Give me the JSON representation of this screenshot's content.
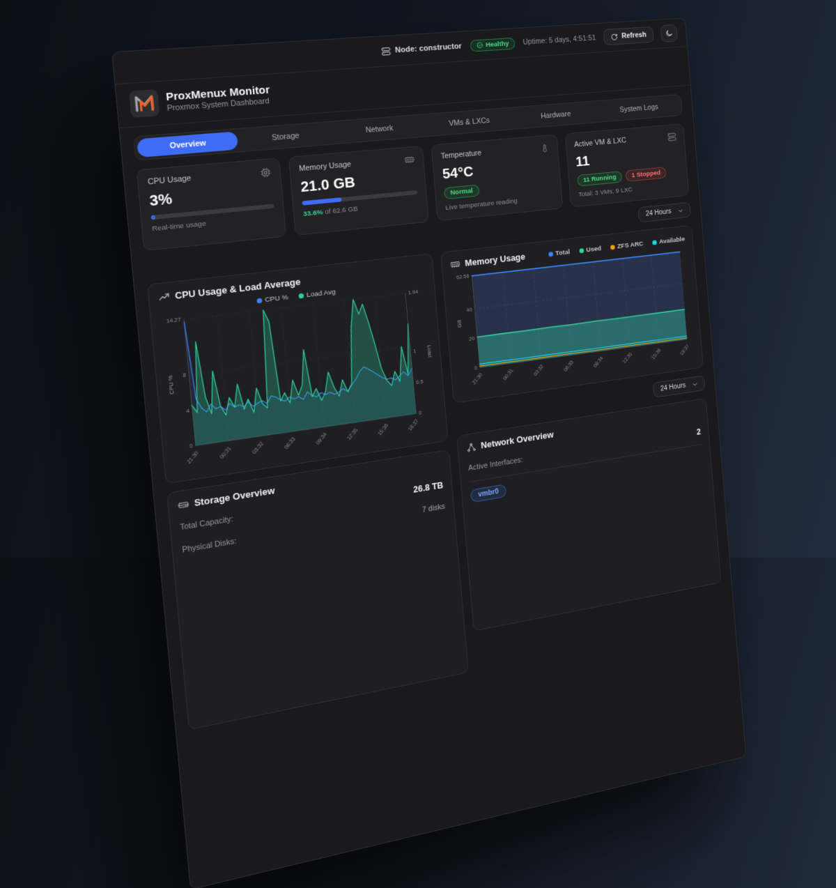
{
  "topbar": {
    "node_label": "Node: constructor",
    "health_label": "Healthy",
    "uptime": "Uptime: 5 days, 4:51:51",
    "refresh_label": "Refresh"
  },
  "header": {
    "title": "ProxMenux Monitor",
    "subtitle": "Proxmox System Dashboard"
  },
  "tabs": [
    {
      "label": "Overview",
      "active": true
    },
    {
      "label": "Storage",
      "active": false
    },
    {
      "label": "Network",
      "active": false
    },
    {
      "label": "VMs & LXCs",
      "active": false
    },
    {
      "label": "Hardware",
      "active": false
    },
    {
      "label": "System Logs",
      "active": false
    }
  ],
  "cards": {
    "cpu": {
      "title": "CPU Usage",
      "value": "3%",
      "progress_pct": 3,
      "caption": "Real-time usage"
    },
    "memory": {
      "title": "Memory Usage",
      "value": "21.0 GB",
      "progress_pct": 33.6,
      "caption_pct": "33.6%",
      "caption_rest": " of 62.6 GB"
    },
    "temperature": {
      "title": "Temperature",
      "value": "54°C",
      "badge": "Normal",
      "caption": "Live temperature reading"
    },
    "vms": {
      "title": "Active VM & LXC",
      "value": "11",
      "badge_running": "11 Running",
      "badge_stopped": "1 Stopped",
      "caption": "Total: 3 VMs, 9 LXC"
    }
  },
  "timerange": {
    "label": "24 Hours"
  },
  "storage": {
    "title": "Storage Overview",
    "rows": [
      {
        "label": "Total Capacity:",
        "value": "26.8 TB"
      },
      {
        "label": "Physical Disks:",
        "value": "7 disks"
      }
    ]
  },
  "network": {
    "title": "Network Overview",
    "rows": [
      {
        "label": "Active Interfaces:",
        "value": "2"
      }
    ],
    "interface_badge": "vmbr0"
  },
  "colors": {
    "accent_blue": "#3e6cf4",
    "healthy_green": "#4ade80",
    "stopped_red": "#f87171",
    "logo_orange": "#e8622c"
  },
  "icons": {
    "topbar_node": "server-icon",
    "health": "check-circle-icon",
    "refresh": "refresh-icon",
    "theme": "moon-icon",
    "cpu_card": "cpu-chip-icon",
    "memory_card": "ram-icon",
    "temperature_card": "thermometer-icon",
    "vms_card": "server-stack-icon",
    "cpu_chart": "trending-up-icon",
    "memory_chart": "ram-icon",
    "storage": "hard-drive-icon",
    "network": "network-nodes-icon",
    "timerange": "chevron-down-icon"
  },
  "chart_data": [
    {
      "type": "line",
      "title": "CPU Usage & Load Average",
      "x_labels": [
        "21:30",
        "00:31",
        "03:32",
        "06:33",
        "09:34",
        "12:35",
        "15:36",
        "18:37"
      ],
      "y_left": {
        "label": "CPU %",
        "max": 14.27,
        "ticks": [
          14.27,
          8,
          4,
          0
        ]
      },
      "y_right": {
        "label": "Load",
        "max": 1.94,
        "ticks": [
          1.94,
          1,
          0.5,
          0
        ]
      },
      "grid": true,
      "grid_color": "#303238",
      "legend": [
        {
          "label": "CPU %",
          "color": "#3b82f6"
        },
        {
          "label": "Load Avg",
          "color": "#2ece9d"
        }
      ],
      "series": [
        {
          "name": "CPU %",
          "axis": "left",
          "color": "#3b82f6",
          "width": 1.2,
          "fill": "rgba(59,130,246,0.10)",
          "values": [
            14,
            5.2,
            4.1,
            3.6,
            4.4,
            3.8,
            4,
            3.5,
            4.2,
            3.7,
            3.9,
            3.6,
            4.1,
            3.5,
            3.8,
            4,
            3.6,
            4.4,
            4.2,
            3.8,
            3.6,
            4,
            3.7,
            3.9,
            3.5,
            4.3,
            3.8,
            3.6,
            4,
            3.7,
            3.9,
            3.6,
            3.8,
            4.1,
            3.7,
            4.4,
            5,
            5.8,
            6.3,
            6,
            5.6,
            5.2,
            4.8,
            4.5,
            4.6,
            4.3,
            4.7,
            5.1,
            4.6,
            5.4
          ]
        },
        {
          "name": "Load Avg",
          "axis": "right",
          "color": "#2ece9d",
          "width": 1.2,
          "fill": "rgba(46,206,157,0.28)",
          "values": [
            0.62,
            0.5,
            1.58,
            0.72,
            0.45,
            1.1,
            0.55,
            0.4,
            0.66,
            0.5,
            0.85,
            0.45,
            0.6,
            0.38,
            0.75,
            0.5,
            0.42,
            1.94,
            1.75,
            0.5,
            0.62,
            0.45,
            0.8,
            0.55,
            0.7,
            1.25,
            0.5,
            0.62,
            0.42,
            0.55,
            0.85,
            0.6,
            0.45,
            0.7,
            0.5,
            0.62,
            1.5,
            1.94,
            1.7,
            1.85,
            1.55,
            1.2,
            0.8,
            0.6,
            0.5,
            0.72,
            0.55,
            1.1,
            0.65,
            1.45
          ]
        }
      ]
    },
    {
      "type": "area",
      "title": "Memory Usage",
      "x_labels": [
        "21:30",
        "00:31",
        "03:32",
        "06:33",
        "09:34",
        "12:35",
        "15:36",
        "18:37"
      ],
      "y_left": {
        "label": "GB",
        "max": 62.56,
        "ticks": [
          62.56,
          40,
          20,
          0
        ]
      },
      "grid": true,
      "grid_color": "#3d4358",
      "legend": [
        {
          "label": "Total",
          "color": "#3b82f6"
        },
        {
          "label": "Used",
          "color": "#34d399"
        },
        {
          "label": "ZFS ARC",
          "color": "#f59e0b"
        },
        {
          "label": "Available",
          "color": "#22d3ee"
        }
      ],
      "series": [
        {
          "name": "Total",
          "axis": "left",
          "color": "#3b82f6",
          "width": 1.6,
          "fill": "rgba(62,95,170,0.30)",
          "values": [
            62.56,
            62.56,
            62.56,
            62.56,
            62.56,
            62.56,
            62.56,
            62.56,
            62.56,
            62.56
          ]
        },
        {
          "name": "Used",
          "axis": "left",
          "color": "#34d399",
          "width": 1.6,
          "fill": "rgba(45,180,150,0.45)",
          "values": [
            20.8,
            21,
            20.9,
            21.1,
            21,
            21.2,
            21.1,
            21.2,
            21.3,
            21.5
          ]
        },
        {
          "name": "ZFS ARC",
          "axis": "left",
          "color": "#f59e0b",
          "width": 1.1,
          "values": [
            1,
            1,
            0.9,
            1,
            1,
            0.9,
            1,
            1,
            0.9,
            1
          ]
        },
        {
          "name": "Available",
          "axis": "left",
          "color": "#22d3ee",
          "width": 1.2,
          "values": [
            2.4,
            2.4,
            2.3,
            2.4,
            2.4,
            2.3,
            2.4,
            2.4,
            2.3,
            2.4
          ]
        }
      ]
    }
  ]
}
